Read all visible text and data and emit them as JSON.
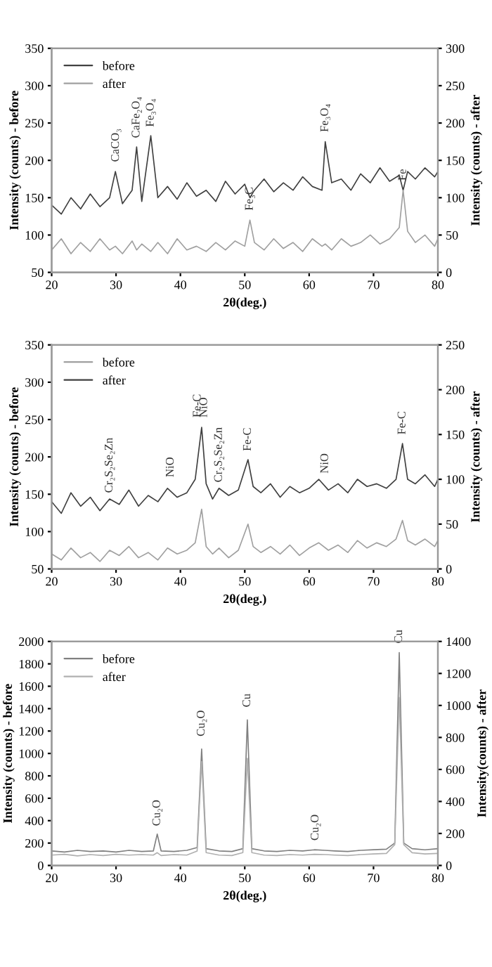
{
  "chart_data": [
    {
      "type": "line",
      "xlabel": "2θ(deg.)",
      "ylabel": "Intensity (counts) - before",
      "y2label": "Intensity (counts) - after",
      "x": [
        20,
        21.5,
        23,
        24.5,
        26,
        27.5,
        29,
        29.9,
        31,
        32.5,
        33.2,
        34,
        35.4,
        36.5,
        38,
        39.5,
        41,
        42.5,
        44,
        45.5,
        47,
        48.5,
        50,
        50.8,
        51.5,
        53,
        54.5,
        56,
        57.5,
        59,
        60.5,
        62,
        62.5,
        63.5,
        65,
        66.5,
        68,
        69.5,
        71,
        72.5,
        74,
        74.6,
        75.3,
        76.5,
        78,
        79.5,
        80
      ],
      "series": [
        {
          "name": "before",
          "color": "#404040",
          "values": [
            140,
            128,
            150,
            135,
            155,
            138,
            150,
            185,
            142,
            160,
            218,
            145,
            233,
            150,
            165,
            148,
            170,
            152,
            160,
            145,
            172,
            155,
            168,
            150,
            160,
            175,
            158,
            170,
            160,
            178,
            165,
            160,
            225,
            170,
            175,
            160,
            182,
            170,
            190,
            172,
            180,
            160,
            185,
            175,
            190,
            178,
            185
          ]
        },
        {
          "name": "after",
          "color": "#a0a0a0",
          "axis": "y2",
          "values": [
            30,
            45,
            25,
            40,
            28,
            45,
            30,
            35,
            25,
            42,
            30,
            38,
            28,
            40,
            25,
            45,
            30,
            35,
            28,
            40,
            30,
            42,
            35,
            70,
            40,
            30,
            45,
            32,
            40,
            28,
            45,
            35,
            38,
            30,
            45,
            35,
            40,
            50,
            38,
            45,
            60,
            110,
            55,
            40,
            50,
            35,
            45
          ]
        }
      ],
      "xlim": [
        20,
        80
      ],
      "xticks": [
        20,
        30,
        40,
        50,
        60,
        70,
        80
      ],
      "ylim": [
        50,
        350
      ],
      "yticks": [
        50,
        100,
        150,
        200,
        250,
        300,
        350
      ],
      "y2lim": [
        0,
        300
      ],
      "y2ticks": [
        0,
        50,
        100,
        150,
        200,
        250,
        300
      ],
      "legend": "top left",
      "grid": false,
      "annotations": [
        {
          "text": "CaCO₃",
          "x": 30,
          "y": 190
        },
        {
          "text": "CaFe₂O₄",
          "x": 33.2,
          "y": 222
        },
        {
          "text": "Fe₃O₄",
          "x": 35.4,
          "y": 237
        },
        {
          "text": "Fe₃O₄",
          "x": 62.5,
          "y": 230
        },
        {
          "text": "Fe₃C",
          "x": 50.8,
          "y": 125
        },
        {
          "text": "Fe",
          "x": 74.6,
          "y": 165
        }
      ]
    },
    {
      "type": "line",
      "xlabel": "2θ(deg.)",
      "ylabel": "Intensity (counts) - before",
      "y2label": "Intensity (counts) - after",
      "x": [
        20,
        21.5,
        23,
        24.5,
        26,
        27.5,
        29,
        30.5,
        32,
        33.5,
        35,
        36.5,
        38,
        39.5,
        41,
        42.3,
        43.3,
        44,
        45,
        46,
        47.5,
        49,
        50.5,
        51.3,
        52.5,
        54,
        55.5,
        57,
        58.5,
        60,
        61.5,
        63,
        64.5,
        66,
        67.5,
        69,
        70.5,
        72,
        73.5,
        74.5,
        75.3,
        76.5,
        78,
        79.5,
        80
      ],
      "series": [
        {
          "name": "before",
          "color": "#a0a0a0",
          "values": [
            70,
            62,
            78,
            65,
            72,
            60,
            75,
            68,
            80,
            65,
            72,
            62,
            78,
            70,
            75,
            85,
            130,
            80,
            70,
            78,
            65,
            75,
            110,
            80,
            72,
            80,
            70,
            82,
            68,
            78,
            85,
            75,
            82,
            72,
            88,
            78,
            85,
            80,
            90,
            115,
            88,
            82,
            90,
            80,
            88
          ]
        },
        {
          "name": "after",
          "color": "#404040",
          "axis": "y2",
          "values": [
            75,
            62,
            85,
            70,
            80,
            65,
            78,
            72,
            88,
            70,
            82,
            75,
            90,
            80,
            85,
            100,
            158,
            95,
            78,
            90,
            82,
            88,
            122,
            92,
            85,
            95,
            80,
            92,
            85,
            90,
            100,
            88,
            95,
            85,
            100,
            92,
            95,
            90,
            100,
            140,
            100,
            95,
            105,
            92,
            100
          ]
        }
      ],
      "xlim": [
        20,
        80
      ],
      "xticks": [
        20,
        30,
        40,
        50,
        60,
        70,
        80
      ],
      "ylim": [
        50,
        350
      ],
      "yticks": [
        50,
        100,
        150,
        200,
        250,
        300,
        350
      ],
      "y2lim": [
        0,
        250
      ],
      "y2ticks": [
        0,
        50,
        100,
        150,
        200,
        250
      ],
      "legend": "top left",
      "grid": false,
      "annotations": [
        {
          "text": "Cr₂S₂Se₂Zn",
          "x": 29,
          "y": 144
        },
        {
          "text": "NiO",
          "x": 38.5,
          "y": 165
        },
        {
          "text": "Fe-C",
          "x": 42.7,
          "y": 245
        },
        {
          "text": "NiO",
          "x": 43.7,
          "y": 245
        },
        {
          "text": "Cr₂S₂Se₂Zn",
          "x": 46,
          "y": 158
        },
        {
          "text": "Fe-C",
          "x": 50.5,
          "y": 200
        },
        {
          "text": "NiO",
          "x": 62.5,
          "y": 170
        },
        {
          "text": "Fe-C",
          "x": 74.5,
          "y": 222
        }
      ]
    },
    {
      "type": "line",
      "xlabel": "2θ(deg.)",
      "ylabel": "Intensity (counts) - before",
      "y2label": "Intensity(counts) - after",
      "x": [
        20,
        22,
        24,
        26,
        28,
        30,
        32,
        34,
        35.8,
        36.4,
        37,
        39,
        41,
        42.6,
        43.3,
        44,
        46,
        48,
        49.7,
        50.4,
        51.1,
        53,
        55,
        57,
        59,
        60.8,
        62.5,
        64,
        66,
        68,
        70,
        72,
        73.3,
        74,
        74.7,
        76,
        78,
        80
      ],
      "series": [
        {
          "name": "before",
          "color": "#808080",
          "values": [
            130,
            120,
            135,
            125,
            130,
            120,
            135,
            125,
            130,
            280,
            130,
            125,
            135,
            160,
            1040,
            150,
            130,
            125,
            150,
            1300,
            150,
            130,
            125,
            135,
            130,
            140,
            135,
            130,
            125,
            135,
            140,
            145,
            200,
            1900,
            200,
            150,
            140,
            150
          ]
        },
        {
          "name": "after",
          "color": "#b0b0b0",
          "axis": "y2",
          "values": [
            65,
            70,
            60,
            68,
            62,
            70,
            65,
            68,
            65,
            80,
            62,
            68,
            65,
            90,
            650,
            80,
            65,
            62,
            80,
            670,
            80,
            65,
            62,
            68,
            65,
            70,
            68,
            65,
            62,
            68,
            72,
            75,
            130,
            1050,
            130,
            80,
            72,
            75
          ]
        }
      ],
      "xlim": [
        20,
        80
      ],
      "xticks": [
        20,
        30,
        40,
        50,
        60,
        70,
        80
      ],
      "ylim": [
        0,
        2000
      ],
      "yticks": [
        0,
        200,
        400,
        600,
        800,
        1000,
        1200,
        1400,
        1600,
        1800,
        2000
      ],
      "y2lim": [
        0,
        1400
      ],
      "y2ticks": [
        0,
        200,
        400,
        600,
        800,
        1000,
        1200,
        1400
      ],
      "legend": "top left",
      "grid": false,
      "annotations": [
        {
          "text": "Cu₂O",
          "x": 36.4,
          "y": 300
        },
        {
          "text": "Cu₂O",
          "x": 43.3,
          "y": 1100
        },
        {
          "text": "Cu",
          "x": 50.4,
          "y": 1360
        },
        {
          "text": "Cu₂O",
          "x": 61,
          "y": 170
        },
        {
          "text": "Cu",
          "x": 74,
          "y": 1930
        }
      ]
    }
  ]
}
